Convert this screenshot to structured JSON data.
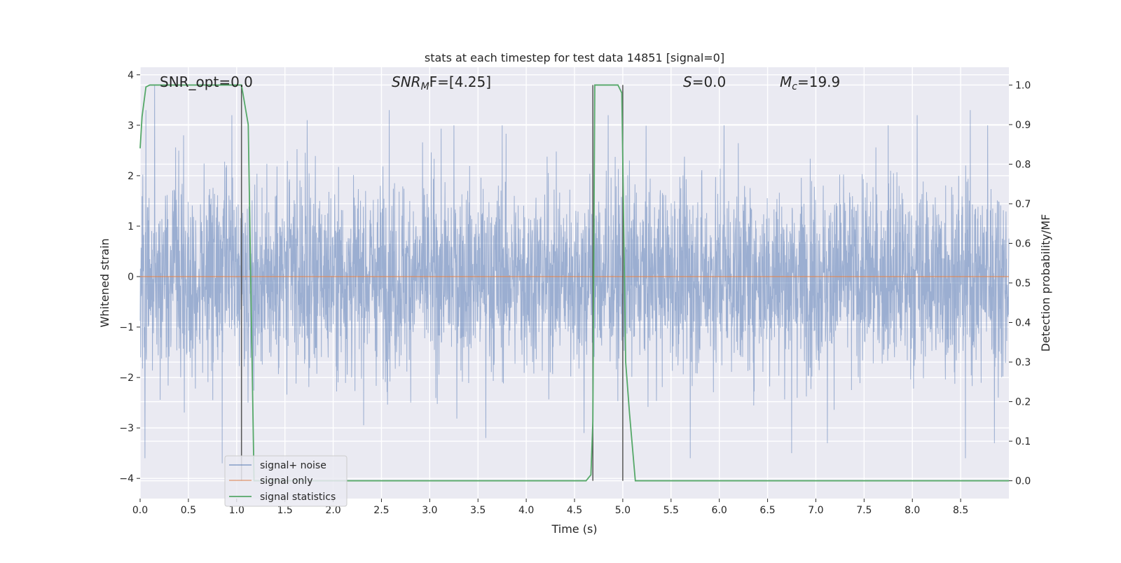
{
  "chart_data": {
    "type": "line",
    "title": "stats at each timestep for test data 14851 [signal=0]",
    "xlabel": "Time (s)",
    "ylabel": "Whitened strain",
    "y2label": "Detection probability/MF",
    "xlim": [
      0,
      9
    ],
    "ylim": [
      -4.4,
      4.15
    ],
    "y2lim": [
      -0.045,
      1.045
    ],
    "xticks": [
      0.0,
      0.5,
      1.0,
      1.5,
      2.0,
      2.5,
      3.0,
      3.5,
      4.0,
      4.5,
      5.0,
      5.5,
      6.0,
      6.5,
      7.0,
      7.5,
      8.0,
      8.5
    ],
    "yticks": [
      -4,
      -3,
      -2,
      -1,
      0,
      1,
      2,
      3,
      4
    ],
    "y2ticks": [
      0.0,
      0.1,
      0.2,
      0.3,
      0.4,
      0.5,
      0.6,
      0.7,
      0.8,
      0.9,
      1.0
    ],
    "xtick_labels": [
      "0.0",
      "0.5",
      "1.0",
      "1.5",
      "2.0",
      "2.5",
      "3.0",
      "3.5",
      "4.0",
      "4.5",
      "5.0",
      "5.5",
      "6.0",
      "6.5",
      "7.0",
      "7.5",
      "8.0",
      "8.5"
    ],
    "ytick_labels": [
      "4",
      "3",
      "2",
      "1",
      "0",
      "−1",
      "−2",
      "−3",
      "−4"
    ],
    "y2tick_labels": [
      "1.0",
      "0.9",
      "0.8",
      "0.7",
      "0.6",
      "0.5",
      "0.4",
      "0.3",
      "0.2",
      "0.1",
      "0.0"
    ],
    "grid": true,
    "legend_placement": "lower-left",
    "annotations": {
      "snr_opt": "SNR_opt=0.0",
      "snr_mf_base": "SNR",
      "snr_mf_sub": "M",
      "snr_mf_rest": "F=[4.25]",
      "s_base": "S",
      "s_rest": "=0.0",
      "mc_base": "M",
      "mc_sub": "c",
      "mc_rest": "=19.9"
    },
    "series": [
      {
        "name": "signal+ noise",
        "color": "#4c72b0",
        "axis": "left",
        "noise_envelope": {
          "x": [
            0,
            9
          ],
          "typical_abs": 1.5,
          "peak_abs": 3.8
        },
        "peaks": [
          [
            0.06,
            3.3
          ],
          [
            0.15,
            3.8
          ],
          [
            0.45,
            2.8
          ],
          [
            0.95,
            3.2
          ],
          [
            1.73,
            3.1
          ],
          [
            2.58,
            3.3
          ],
          [
            3.25,
            3.0
          ],
          [
            3.75,
            3.0
          ],
          [
            4.85,
            3.2
          ],
          [
            6.05,
            3.0
          ],
          [
            7.75,
            3.0
          ],
          [
            8.05,
            3.2
          ],
          [
            8.6,
            3.3
          ],
          [
            8.78,
            3.0
          ],
          [
            0.05,
            -3.6
          ],
          [
            0.85,
            -3.7
          ],
          [
            3.58,
            -3.2
          ],
          [
            4.6,
            -3.1
          ],
          [
            5.7,
            -3.6
          ],
          [
            6.75,
            -3.5
          ],
          [
            7.12,
            -3.3
          ],
          [
            8.55,
            -3.6
          ],
          [
            8.85,
            -3.3
          ]
        ]
      },
      {
        "name": "signal only",
        "color": "#dd8452",
        "axis": "left",
        "x": [
          0,
          9
        ],
        "y": [
          0,
          0
        ]
      },
      {
        "name": "signal statistics",
        "color": "#55a868",
        "axis": "right",
        "x": [
          0.0,
          0.02,
          0.06,
          0.1,
          0.5,
          1.0,
          1.05,
          1.12,
          1.18,
          1.5,
          2.0,
          3.0,
          4.0,
          4.62,
          4.67,
          4.69,
          4.71,
          4.8,
          4.95,
          4.99,
          5.03,
          5.07,
          5.13,
          6.0,
          7.0,
          8.0,
          9.0
        ],
        "y": [
          0.84,
          0.92,
          0.995,
          1.0,
          1.0,
          1.0,
          1.0,
          0.9,
          0.0,
          0.0,
          0.0,
          0.0,
          0.0,
          0.0,
          0.015,
          0.15,
          1.0,
          1.0,
          1.0,
          0.98,
          0.3,
          0.17,
          0.0,
          0.0,
          0.0,
          0.0,
          0.0
        ]
      }
    ],
    "vertical_lines": {
      "color": "#555555",
      "x": [
        1.05,
        4.69,
        5.0
      ],
      "y2_range": [
        0.0,
        1.0
      ]
    }
  }
}
